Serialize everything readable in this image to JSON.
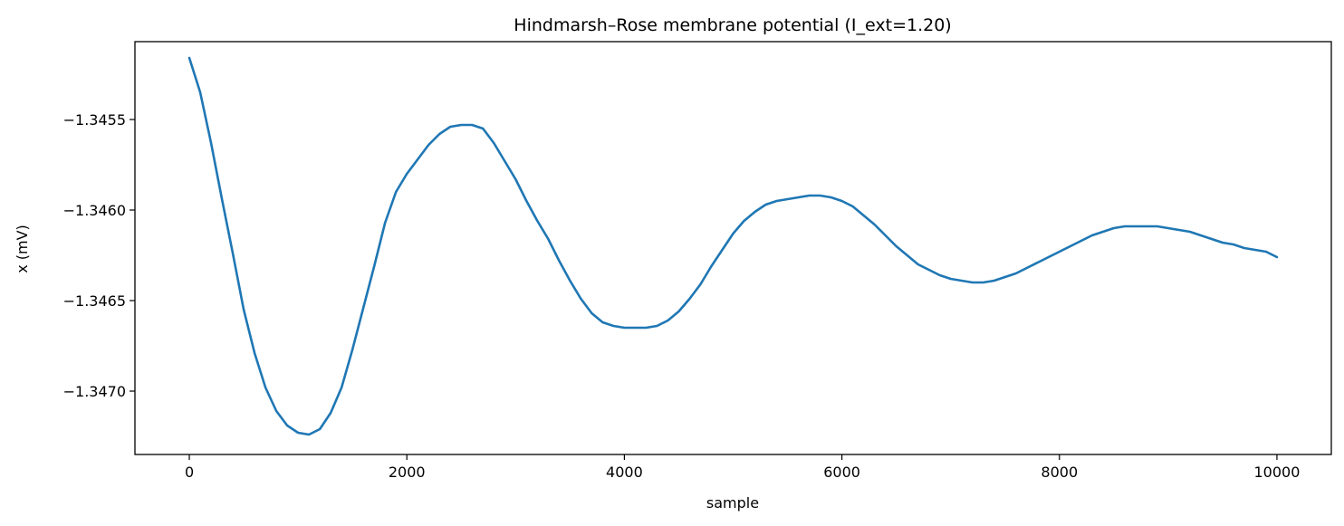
{
  "chart_data": {
    "type": "line",
    "title": "Hindmarsh–Rose membrane potential (I_ext=1.20)",
    "xlabel": "sample",
    "ylabel": "x (mV)",
    "xlim": [
      -500,
      10500
    ],
    "ylim": [
      -1.34735,
      -1.34507
    ],
    "x_ticks": [
      0,
      2000,
      4000,
      6000,
      8000,
      10000
    ],
    "x_tick_labels": [
      "0",
      "2000",
      "4000",
      "6000",
      "8000",
      "10000"
    ],
    "y_ticks": [
      -1.3455,
      -1.346,
      -1.3465,
      -1.347
    ],
    "y_tick_labels": [
      "−1.3455",
      "−1.3460",
      "−1.3465",
      "−1.3470"
    ],
    "grid": false,
    "series_color": "#1f77b4",
    "series": [
      {
        "x": [
          0,
          100,
          200,
          300,
          400,
          500,
          600,
          700,
          800,
          900,
          1000,
          1100,
          1200,
          1300,
          1400,
          1500,
          1600,
          1700,
          1800,
          1900,
          2000,
          2100,
          2200,
          2300,
          2400,
          2500,
          2600,
          2700,
          2800,
          2900,
          3000,
          3100,
          3200,
          3300,
          3400,
          3500,
          3600,
          3700,
          3800,
          3900,
          4000,
          4100,
          4200,
          4300,
          4400,
          4500,
          4600,
          4700,
          4800,
          4900,
          5000,
          5100,
          5200,
          5300,
          5400,
          5500,
          5600,
          5700,
          5800,
          5900,
          6000,
          6100,
          6200,
          6300,
          6400,
          6500,
          6600,
          6700,
          6800,
          6900,
          7000,
          7100,
          7200,
          7300,
          7400,
          7500,
          7600,
          7700,
          7800,
          7900,
          8000,
          8100,
          8200,
          8300,
          8400,
          8500,
          8600,
          8700,
          8800,
          8900,
          9000,
          9100,
          9200,
          9300,
          9400,
          9500,
          9600,
          9700,
          9800,
          9900,
          10000
        ],
        "values": [
          -1.34516,
          -1.34535,
          -1.34563,
          -1.34594,
          -1.34624,
          -1.34655,
          -1.34679,
          -1.34698,
          -1.34711,
          -1.34719,
          -1.34723,
          -1.34724,
          -1.34721,
          -1.34712,
          -1.34698,
          -1.34677,
          -1.34654,
          -1.34631,
          -1.34607,
          -1.3459,
          -1.3458,
          -1.34572,
          -1.34564,
          -1.34558,
          -1.34554,
          -1.34553,
          -1.34553,
          -1.34555,
          -1.34563,
          -1.34573,
          -1.34583,
          -1.34595,
          -1.34606,
          -1.34616,
          -1.34628,
          -1.34639,
          -1.34649,
          -1.34657,
          -1.34662,
          -1.34664,
          -1.34665,
          -1.34665,
          -1.34665,
          -1.34664,
          -1.34661,
          -1.34656,
          -1.34649,
          -1.34641,
          -1.34631,
          -1.34622,
          -1.34613,
          -1.34606,
          -1.34601,
          -1.34597,
          -1.34595,
          -1.34594,
          -1.34593,
          -1.34592,
          -1.34592,
          -1.34593,
          -1.34595,
          -1.34598,
          -1.34603,
          -1.34608,
          -1.34614,
          -1.3462,
          -1.34625,
          -1.3463,
          -1.34633,
          -1.34636,
          -1.34638,
          -1.34639,
          -1.3464,
          -1.3464,
          -1.34639,
          -1.34637,
          -1.34635,
          -1.34632,
          -1.34629,
          -1.34626,
          -1.34623,
          -1.3462,
          -1.34617,
          -1.34614,
          -1.34612,
          -1.3461,
          -1.34609,
          -1.34609,
          -1.34609,
          -1.34609,
          -1.3461,
          -1.34611,
          -1.34612,
          -1.34614,
          -1.34616,
          -1.34618,
          -1.34619,
          -1.34621,
          -1.34622,
          -1.34623,
          -1.34626
        ]
      }
    ]
  }
}
